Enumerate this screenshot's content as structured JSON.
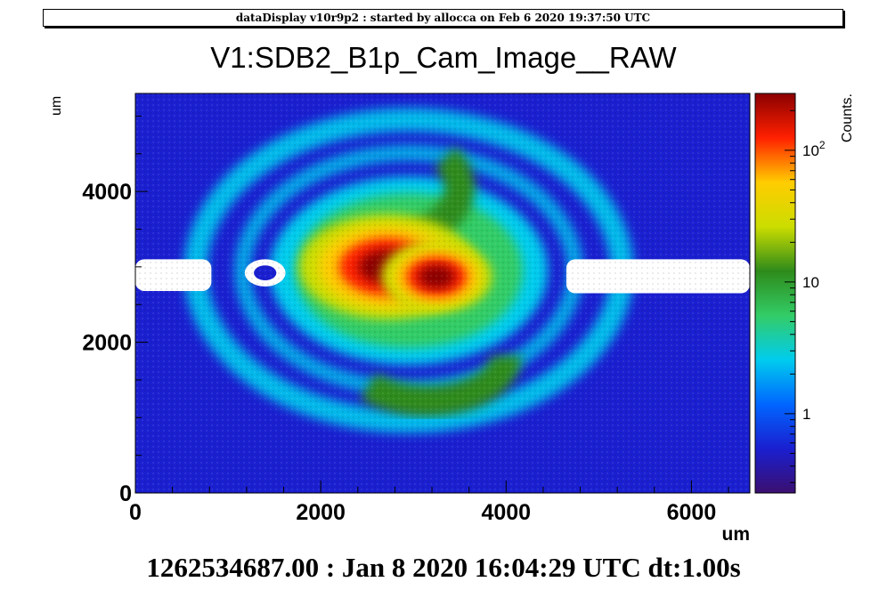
{
  "banner": "dataDisplay v10r9p2 : started by allocca on Feb  6 2020 19:37:50 UTC",
  "footer": "1262534687.00 : Jan  8 2020 16:04:29 UTC dt:1.00s",
  "chart_data": {
    "type": "heatmap",
    "title": "V1:SDB2_B1p_Cam_Image__RAW",
    "xlabel": "um",
    "ylabel": "um",
    "zlabel": "Counts.",
    "xlim": [
      0,
      6630
    ],
    "ylim": [
      0,
      5300
    ],
    "zlim": [
      0.25,
      270
    ],
    "zscale": "log",
    "x_ticks": [
      {
        "value": 0,
        "label": "0"
      },
      {
        "value": 2000,
        "label": "2000"
      },
      {
        "value": 4000,
        "label": "4000"
      },
      {
        "value": 6000,
        "label": "6000"
      }
    ],
    "y_ticks": [
      {
        "value": 0,
        "label": "0"
      },
      {
        "value": 2000,
        "label": "2000"
      },
      {
        "value": 4000,
        "label": "4000"
      }
    ],
    "z_ticks": [
      {
        "value": 1,
        "label": "1"
      },
      {
        "value": 10,
        "label": "10"
      },
      {
        "value": 100,
        "label": "10",
        "sup": "2"
      }
    ],
    "palette": [
      "#3b0f70",
      "#1a1fd0",
      "#0066ff",
      "#00ccee",
      "#33cc66",
      "#2e8b1a",
      "#ccdd00",
      "#ffcc00",
      "#ff2000",
      "#8b0000"
    ],
    "background_counts": 0.8,
    "saturated_color": "#ffffff",
    "features": [
      {
        "kind": "beam_core",
        "x": 2720,
        "y": 3000,
        "rx": 950,
        "ry": 700,
        "peak_counts": 270
      },
      {
        "kind": "beam_core",
        "x": 3250,
        "y": 2870,
        "rx": 600,
        "ry": 480,
        "peak_counts": 240
      },
      {
        "kind": "halo",
        "x": 2950,
        "y": 2950,
        "rx": 1500,
        "ry": 1250,
        "peak_counts": 9
      },
      {
        "kind": "arc",
        "x": 2300,
        "y": 4050,
        "rx": 1200,
        "ry": 800,
        "peak_counts": 12
      },
      {
        "kind": "arc",
        "x": 3150,
        "y": 1820,
        "rx": 850,
        "ry": 600,
        "peak_counts": 11
      },
      {
        "kind": "ring",
        "x": 2950,
        "y": 2950,
        "rx": 2300,
        "ry": 2000,
        "peak_counts": 2.5
      },
      {
        "kind": "saturated_band",
        "x_from": 0,
        "x_to": 820,
        "y_from": 2680,
        "y_to": 3100
      },
      {
        "kind": "saturated_band",
        "x_from": 4650,
        "x_to": 6630,
        "y_from": 2650,
        "y_to": 3100
      },
      {
        "kind": "saturated_spot",
        "x": 1400,
        "y": 2920,
        "rx": 220,
        "ry": 180
      }
    ]
  }
}
